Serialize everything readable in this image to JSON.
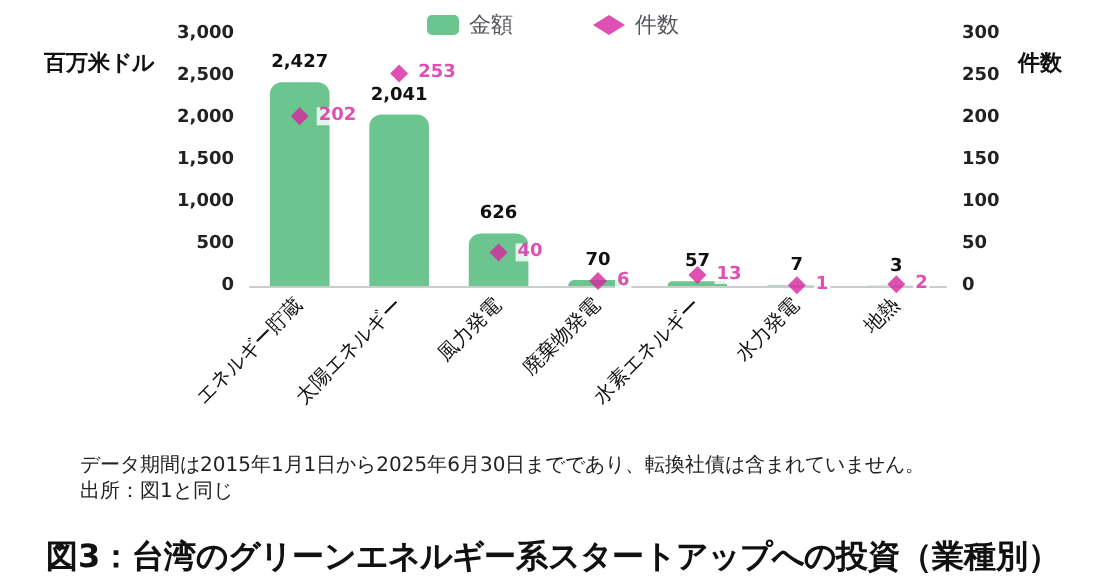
{
  "chart_data": {
    "type": "bar",
    "title": "図3：台湾のグリーンエネルギー系スタートアップへの投資（業種別）",
    "ylabel": "百万米ドル",
    "y2label": "件数",
    "categories": [
      "エネルギー貯蔵",
      "太陽エネルギー",
      "風力発電",
      "廃棄物発電",
      "水素エネルギー",
      "水力発電",
      "地熱"
    ],
    "series": [
      {
        "name": "金額",
        "color": "#6cc58e",
        "values": [
          2427,
          2041,
          626,
          70,
          57,
          7,
          3
        ],
        "value_labels": [
          "2,427",
          "2,041",
          "626",
          "70",
          "57",
          "7",
          "3"
        ]
      },
      {
        "name": "件数",
        "type": "scatter",
        "axis": "y2",
        "color": "#d6249f",
        "values": [
          202,
          253,
          40,
          6,
          13,
          1,
          2
        ]
      }
    ],
    "ylim": [
      0,
      3000
    ],
    "yticks": [
      0,
      500,
      {
        "value": 1000,
        "label": "1,000"
      },
      {
        "value": 1500,
        "label": "1,500"
      },
      {
        "value": 2000,
        "label": "2,000"
      },
      {
        "value": 2500,
        "label": "2,500"
      },
      {
        "value": 3000,
        "label": "3,000"
      }
    ],
    "y2lim": [
      0,
      300
    ],
    "y2ticks": [
      0,
      50,
      100,
      150,
      200,
      250,
      300
    ],
    "data_labels": true,
    "legend": "top",
    "grid": false,
    "marker": "diamond",
    "annotations": [
      "データ期間は2015年1月1日から2025年6月30日までであり、転換社債は含まれていません。",
      "出所：図1と同じ"
    ]
  }
}
